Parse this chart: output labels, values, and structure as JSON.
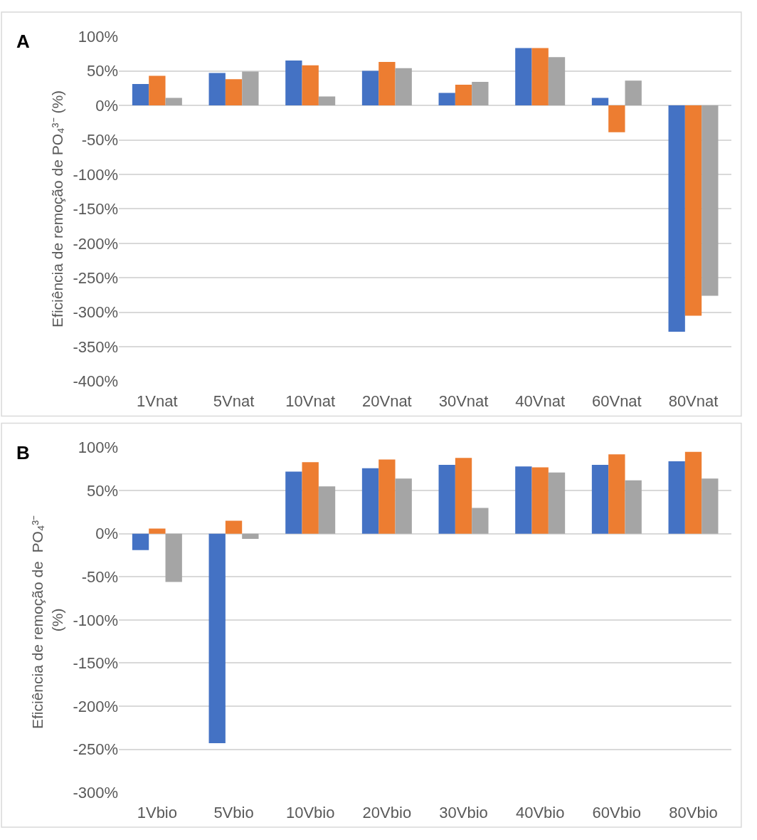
{
  "chart_data": [
    {
      "type": "bar",
      "title": "A",
      "ylabel": "Eficiência de remoção de PO₄³⁻ (%)",
      "categories": [
        "1Vnat",
        "5Vnat",
        "10Vnat",
        "20Vnat",
        "30Vnat",
        "40Vnat",
        "60Vnat",
        "80Vnat"
      ],
      "series": [
        {
          "color": "#4472c4",
          "values": [
            31,
            47,
            65,
            50,
            18,
            83,
            11,
            -328
          ]
        },
        {
          "color": "#ed7d31",
          "values": [
            43,
            38,
            58,
            63,
            30,
            83,
            -39,
            -305
          ]
        },
        {
          "color": "#a5a5a5",
          "values": [
            11,
            49,
            13,
            54,
            34,
            70,
            36,
            -276
          ]
        }
      ],
      "ylim": [
        -400,
        100
      ],
      "yticks": [
        {
          "value": -400,
          "label": "-400%"
        },
        {
          "value": -350,
          "label": "-350%"
        },
        {
          "value": -300,
          "label": "-300%"
        },
        {
          "value": -250,
          "label": "-250%"
        },
        {
          "value": -200,
          "label": "-200%"
        },
        {
          "value": -150,
          "label": "-150%"
        },
        {
          "value": -100,
          "label": "-100%"
        },
        {
          "value": -50,
          "label": "-50%"
        },
        {
          "value": 0,
          "label": "0%"
        },
        {
          "value": 50,
          "label": "50%"
        },
        {
          "value": 100,
          "label": "100%"
        }
      ],
      "grid": "y"
    },
    {
      "type": "bar",
      "title": "B",
      "ylabel": "Eficiência de remoção de  PO₄³⁻ (%)",
      "categories": [
        "1Vbio",
        "5Vbio",
        "10Vbio",
        "20Vbio",
        "30Vbio",
        "40Vbio",
        "60Vbio",
        "80Vbio"
      ],
      "series": [
        {
          "color": "#4472c4",
          "values": [
            -19,
            -243,
            72,
            76,
            80,
            78,
            80,
            84
          ]
        },
        {
          "color": "#ed7d31",
          "values": [
            6,
            15,
            83,
            86,
            88,
            77,
            92,
            95
          ]
        },
        {
          "color": "#a5a5a5",
          "values": [
            -56,
            -6,
            55,
            64,
            30,
            71,
            62,
            64
          ]
        }
      ],
      "ylim": [
        -300,
        100
      ],
      "yticks": [
        {
          "value": -300,
          "label": "-300%"
        },
        {
          "value": -250,
          "label": "-250%"
        },
        {
          "value": -200,
          "label": "-200%"
        },
        {
          "value": -150,
          "label": "-150%"
        },
        {
          "value": -100,
          "label": "-100%"
        },
        {
          "value": -50,
          "label": "-50%"
        },
        {
          "value": 0,
          "label": "0%"
        },
        {
          "value": 50,
          "label": "50%"
        },
        {
          "value": 100,
          "label": "100%"
        }
      ],
      "grid": "y"
    }
  ]
}
